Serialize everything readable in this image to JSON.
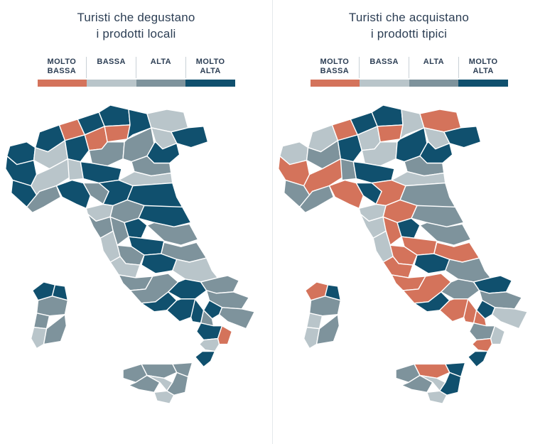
{
  "page": {
    "background": "#ffffff"
  },
  "colors": {
    "molto_bassa": "#D4735B",
    "bassa": "#B9C5CA",
    "alta": "#7E939C",
    "molto_alta": "#10506E",
    "title_text": "#2C3E54",
    "divider": "#E4E8EB",
    "legend_separator": "#C9D1D6",
    "province_border": "#FFFFFF"
  },
  "legend": {
    "items": [
      {
        "key": "molto_bassa",
        "line1": "MOLTO",
        "line2": "BASSA"
      },
      {
        "key": "bassa",
        "line1": "BASSA",
        "line2": ""
      },
      {
        "key": "alta",
        "line1": "ALTA",
        "line2": ""
      },
      {
        "key": "molto_alta",
        "line1": "MOLTO",
        "line2": "ALTA"
      }
    ]
  },
  "chart_data": {
    "type": "heatmap",
    "subtype": "choropleth of Italian provinces, 4-level ordinal intensity scale, two side-by-side maps",
    "categories": [
      "MOLTO BASSA",
      "BASSA",
      "ALTA",
      "MOLTO ALTA"
    ],
    "category_colors": {
      "molto_bassa": "#D4735B",
      "bassa": "#B9C5CA",
      "alta": "#7E939C",
      "molto_alta": "#10506E"
    },
    "legend_position": "top",
    "maps": [
      {
        "id": "degustano",
        "title": [
          "Turisti che degustano",
          "i prodotti locali"
        ],
        "values": {
          "aosta": "molto_alta",
          "verbano": "molto_alta",
          "novara": "bassa",
          "torino": "molto_alta",
          "cuneo": "molto_alta",
          "asti": "bassa",
          "como": "molto_bassa",
          "sondrio": "molto_alta",
          "milano": "molto_alta",
          "bergamo": "molto_bassa",
          "brescia": "alta",
          "pavia": "bassa",
          "cremona": "molto_alta",
          "bolzano": "molto_alta",
          "trento": "molto_bassa",
          "belluno": "molto_alta",
          "udine": "bassa",
          "trieste": "molto_alta",
          "verona": "alta",
          "treviso": "bassa",
          "venezia": "molto_alta",
          "rovigo": "alta",
          "liguria_w": "alta",
          "liguria_e": "molto_alta",
          "parma": "alta",
          "bologna": "molto_alta",
          "ferrara": "bassa",
          "romagna": "molto_alta",
          "lucca": "bassa",
          "firenze": "alta",
          "pisa": "alta",
          "siena": "alta",
          "arezzo": "molto_alta",
          "grosseto": "bassa",
          "perugia": "molto_alta",
          "terni": "alta",
          "pesaro": "molto_alta",
          "viterbo": "bassa",
          "macerata": "alta",
          "roma": "alta",
          "latina": "alta",
          "laquila": "molto_alta",
          "teramo": "alta",
          "chieti": "bassa",
          "napoli": "molto_alta",
          "benevento": "molto_alta",
          "salerno": "molto_alta",
          "foggia": "alta",
          "bari": "alta",
          "lecce": "alta",
          "taranto": "molto_alta",
          "potenza": "molto_alta",
          "matera": "alta",
          "cosenza": "molto_alta",
          "crotone": "molto_bassa",
          "catanzaro": "bassa",
          "reggio": "molto_alta",
          "messina": "alta",
          "palermo": "alta",
          "trapani": "alta",
          "agrigento": "alta",
          "caltanissetta": "bassa",
          "catania": "alta",
          "ragusa": "bassa",
          "sassari": "molto_alta",
          "olbia": "molto_alta",
          "nuoro": "alta",
          "oristano": "alta",
          "cagliari": "bassa",
          "sud": "alta"
        }
      },
      {
        "id": "acquistano",
        "title": [
          "Turisti che acquistano",
          "i prodotti tipici"
        ],
        "values": {
          "aosta": "bassa",
          "verbano": "bassa",
          "novara": "alta",
          "torino": "molto_bassa",
          "cuneo": "alta",
          "asti": "molto_bassa",
          "como": "molto_bassa",
          "sondrio": "molto_alta",
          "milano": "molto_alta",
          "bergamo": "bassa",
          "brescia": "bassa",
          "pavia": "alta",
          "cremona": "molto_alta",
          "bolzano": "molto_alta",
          "trento": "molto_bassa",
          "belluno": "bassa",
          "udine": "molto_bassa",
          "trieste": "molto_alta",
          "verona": "molto_alta",
          "treviso": "bassa",
          "venezia": "molto_alta",
          "rovigo": "alta",
          "liguria_w": "alta",
          "liguria_e": "molto_bassa",
          "parma": "molto_alta",
          "bologna": "molto_bassa",
          "ferrara": "bassa",
          "romagna": "alta",
          "lucca": "bassa",
          "firenze": "molto_bassa",
          "pisa": "bassa",
          "siena": "molto_bassa",
          "arezzo": "molto_alta",
          "grosseto": "bassa",
          "perugia": "molto_bassa",
          "terni": "molto_bassa",
          "pesaro": "alta",
          "viterbo": "molto_bassa",
          "macerata": "alta",
          "roma": "molto_bassa",
          "latina": "molto_bassa",
          "laquila": "molto_alta",
          "teramo": "molto_bassa",
          "chieti": "alta",
          "napoli": "molto_alta",
          "benevento": "alta",
          "salerno": "molto_bassa",
          "foggia": "molto_alta",
          "bari": "alta",
          "lecce": "bassa",
          "taranto": "molto_alta",
          "potenza": "molto_bassa",
          "matera": "molto_bassa",
          "cosenza": "alta",
          "crotone": "bassa",
          "catanzaro": "molto_bassa",
          "reggio": "molto_alta",
          "messina": "molto_alta",
          "palermo": "molto_bassa",
          "trapani": "alta",
          "agrigento": "alta",
          "caltanissetta": "bassa",
          "catania": "molto_alta",
          "ragusa": "bassa",
          "sassari": "molto_bassa",
          "olbia": "molto_alta",
          "nuoro": "alta",
          "oristano": "bassa",
          "cagliari": "bassa",
          "sud": "alta"
        }
      }
    ]
  }
}
